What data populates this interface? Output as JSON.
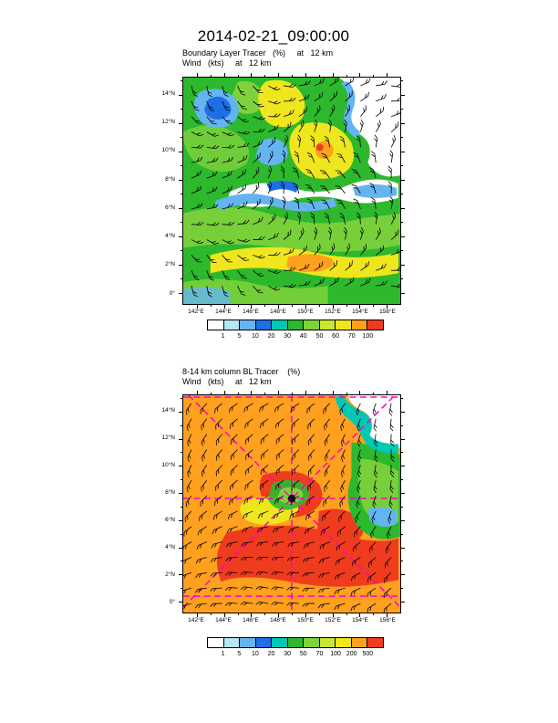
{
  "title": "2014-02-21_09:00:00",
  "accent_colors": {
    "section_line_magenta": "#ff00c8",
    "frame_black": "#000000"
  },
  "panels": [
    {
      "subtitle_line1": "Boundary Layer Tracer   (%)     at   12 km",
      "subtitle_line2": "Wind   (kts)     at   12 km",
      "lat_ticks": [
        "14°N",
        "12°N",
        "10°N",
        "8°N",
        "6°N",
        "4°N",
        "2°N",
        "0°"
      ],
      "lon_ticks": [
        "142°E",
        "144°E",
        "146°E",
        "148°E",
        "150°E",
        "152°E",
        "154°E",
        "156°E"
      ],
      "colorbar": {
        "labels": [
          "1",
          "5",
          "10",
          "20",
          "30",
          "40",
          "50",
          "60",
          "70",
          "100"
        ],
        "colors": [
          "#ffffff",
          "#b4e6f5",
          "#64b4f0",
          "#1e6ee6",
          "#00c8b4",
          "#2db82d",
          "#7fd23c",
          "#c8e632",
          "#f0e61e",
          "#ffa01e",
          "#f03c1e"
        ]
      }
    },
    {
      "subtitle_line1": "8-14 km column BL Tracer    (%)",
      "subtitle_line2": "Wind   (kts)     at   12 km",
      "lat_ticks": [
        "14°N",
        "12°N",
        "10°N",
        "8°N",
        "6°N",
        "4°N",
        "2°N",
        "0°"
      ],
      "lon_ticks": [
        "142°E",
        "144°E",
        "146°E",
        "148°E",
        "150°E",
        "152°E",
        "154°E",
        "156°E"
      ],
      "colorbar": {
        "labels": [
          "1",
          "5",
          "10",
          "20",
          "30",
          "50",
          "70",
          "100",
          "200",
          "500"
        ],
        "colors": [
          "#ffffff",
          "#b4e6f5",
          "#64b4f0",
          "#1e6ee6",
          "#00c8b4",
          "#2db82d",
          "#7fd23c",
          "#c8e632",
          "#f0e61e",
          "#ffa01e",
          "#f03c1e"
        ]
      },
      "overlay_note": "Magenta dashed cross-section lines (horizontal, vertical and two diagonals) radiating from a black dot near 149°E, 7.5°N; additional dashed lines along top and bottom edges"
    }
  ],
  "chart_data": [
    {
      "type": "heatmap",
      "title": "Boundary Layer Tracer (%) at 12 km",
      "overlay": "Wind barbs (kts) at 12 km drawn on a regular grid over the whole domain",
      "lon_range_E": [
        141,
        157
      ],
      "lat_range_N": [
        -1,
        15.3
      ],
      "x_ticks_lon_E": [
        142,
        144,
        146,
        148,
        150,
        152,
        154,
        156
      ],
      "y_ticks_lat_N": [
        0,
        2,
        4,
        6,
        8,
        10,
        12,
        14
      ],
      "contour_levels_percent": [
        1,
        5,
        10,
        20,
        30,
        40,
        50,
        60,
        70,
        100
      ],
      "palette": [
        "#ffffff",
        "#b4e6f5",
        "#64b4f0",
        "#1e6ee6",
        "#00c8b4",
        "#2db82d",
        "#7fd23c",
        "#c8e632",
        "#f0e61e",
        "#ffa01e",
        "#f03c1e"
      ],
      "field_summary": "Tracer mostly 10-40% (greens) across the domain; 40-70% (yellow-orange) patches near 149-152E / 8-11N and a yellow band with orange core near 1-3N; <1% (white) in the NE corner and in a sinuous white band near 7-8N flanked by 1-10% blue filaments; scattered blue (1-10%) patches in the NW and center."
    },
    {
      "type": "heatmap",
      "title": "8-14 km column BL Tracer (%)",
      "overlay": "Wind barbs (kts) at 12 km; magenta dashed cross-section lines through a black dot near 149E, 7.5N (horizontal, vertical, two diagonals, plus dashed lines near top and bottom edges)",
      "lon_range_E": [
        141,
        157
      ],
      "lat_range_N": [
        -1,
        15.3
      ],
      "x_ticks_lon_E": [
        142,
        144,
        146,
        148,
        150,
        152,
        154,
        156
      ],
      "y_ticks_lat_N": [
        0,
        2,
        4,
        6,
        8,
        10,
        12,
        14
      ],
      "contour_levels_percent": [
        1,
        5,
        10,
        20,
        30,
        50,
        70,
        100,
        200,
        500
      ],
      "palette": [
        "#ffffff",
        "#b4e6f5",
        "#64b4f0",
        "#1e6ee6",
        "#00c8b4",
        "#2db82d",
        "#7fd23c",
        "#c8e632",
        "#f0e61e",
        "#ffa01e",
        "#f03c1e"
      ],
      "field_summary": "Column tracer mostly 100-200% (orange) with 200-500% (red) lobes in the center (148-151E, 7-9N) and in a broad band near 2-4N; 10-50% (greens) along the eastern edge around 154-156E; <1% (white) in the NE corner fringed by cyan/teal 1-10% values."
    }
  ]
}
